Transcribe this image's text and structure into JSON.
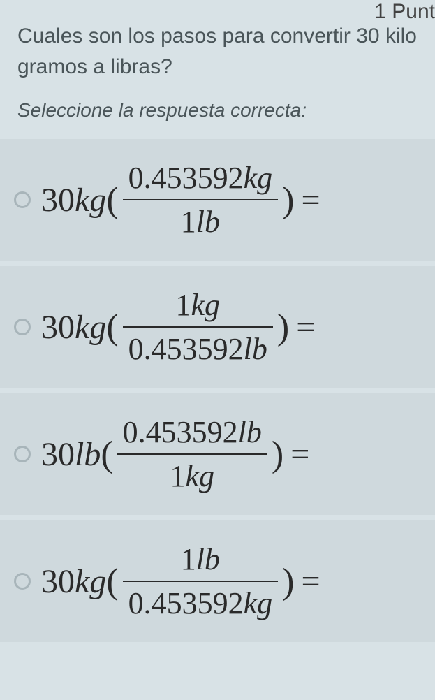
{
  "header": {
    "points_label": "1 Punt"
  },
  "question": {
    "line1": "Cuales son los pasos para convertir 30 kilo",
    "line2": "gramos a libras?"
  },
  "instruction": "Seleccione la respuesta correcta:",
  "options": [
    {
      "prefix_num": "30",
      "prefix_unit": "kg",
      "frac_top_num": "0.453592",
      "frac_top_unit": "kg",
      "frac_bot_num": "1",
      "frac_bot_unit": "lb"
    },
    {
      "prefix_num": "30",
      "prefix_unit": "kg",
      "frac_top_num": "1",
      "frac_top_unit": "kg",
      "frac_bot_num": "0.453592",
      "frac_bot_unit": "lb"
    },
    {
      "prefix_num": "30",
      "prefix_unit": "lb",
      "frac_top_num": "0.453592",
      "frac_top_unit": "lb",
      "frac_bot_num": "1",
      "frac_bot_unit": "kg"
    },
    {
      "prefix_num": "30",
      "prefix_unit": "kg",
      "frac_top_num": "1",
      "frac_top_unit": "lb",
      "frac_bot_num": "0.453592",
      "frac_bot_unit": "kg"
    }
  ],
  "colors": {
    "background": "#d8e2e6",
    "option_background": "#cfd9dd",
    "text_color": "#4a5559",
    "formula_color": "#2a2a2a",
    "radio_border": "#a8b5ba"
  }
}
